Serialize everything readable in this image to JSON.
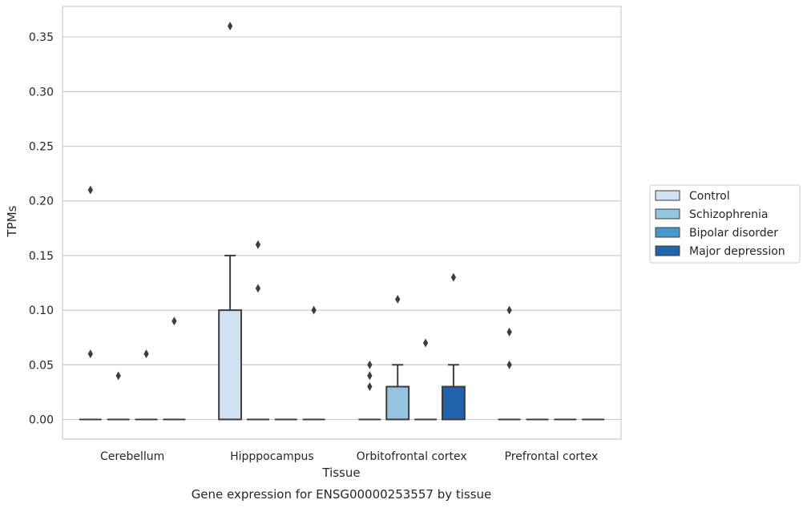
{
  "chart_data": {
    "type": "box",
    "title": "Gene expression for ENSG00000253557 by tissue",
    "xlabel": "Tissue",
    "ylabel": "TPMs",
    "categories": [
      "Cerebellum",
      "Hipppocampus",
      "Orbitofrontal cortex",
      "Prefrontal cortex"
    ],
    "ylim": [
      -0.018,
      0.378
    ],
    "yticks": [
      0.0,
      0.05,
      0.1,
      0.15,
      0.2,
      0.25,
      0.3,
      0.35
    ],
    "ytick_labels": [
      "0.00",
      "0.05",
      "0.10",
      "0.15",
      "0.20",
      "0.25",
      "0.30",
      "0.35"
    ],
    "grid": "horizontal",
    "legend_position": "right",
    "series": [
      {
        "name": "Control",
        "color": "#d0e1f2",
        "boxes": [
          {
            "q1": 0,
            "median": 0,
            "q3": 0,
            "whisker_low": 0,
            "whisker_high": 0,
            "outliers": [
              0.21,
              0.06
            ]
          },
          {
            "q1": 0,
            "median": 0,
            "q3": 0.1,
            "whisker_low": 0,
            "whisker_high": 0.15,
            "outliers": [
              0.36
            ]
          },
          {
            "q1": 0,
            "median": 0,
            "q3": 0,
            "whisker_low": 0,
            "whisker_high": 0,
            "outliers": [
              0.05,
              0.04,
              0.03
            ]
          },
          {
            "q1": 0,
            "median": 0,
            "q3": 0,
            "whisker_low": 0,
            "whisker_high": 0,
            "outliers": [
              0.1,
              0.08,
              0.05
            ]
          }
        ]
      },
      {
        "name": "Schizophrenia",
        "color": "#94c4df",
        "boxes": [
          {
            "q1": 0,
            "median": 0,
            "q3": 0,
            "whisker_low": 0,
            "whisker_high": 0,
            "outliers": [
              0.04
            ]
          },
          {
            "q1": 0,
            "median": 0,
            "q3": 0,
            "whisker_low": 0,
            "whisker_high": 0,
            "outliers": [
              0.16,
              0.12
            ]
          },
          {
            "q1": 0,
            "median": 0,
            "q3": 0.03,
            "whisker_low": 0,
            "whisker_high": 0.05,
            "outliers": [
              0.11
            ]
          },
          {
            "q1": 0,
            "median": 0,
            "q3": 0,
            "whisker_low": 0,
            "whisker_high": 0,
            "outliers": []
          }
        ]
      },
      {
        "name": "Bipolar disorder",
        "color": "#4a98c9",
        "boxes": [
          {
            "q1": 0,
            "median": 0,
            "q3": 0,
            "whisker_low": 0,
            "whisker_high": 0,
            "outliers": [
              0.06
            ]
          },
          {
            "q1": 0,
            "median": 0,
            "q3": 0,
            "whisker_low": 0,
            "whisker_high": 0,
            "outliers": []
          },
          {
            "q1": 0,
            "median": 0,
            "q3": 0,
            "whisker_low": 0,
            "whisker_high": 0,
            "outliers": [
              0.07
            ]
          },
          {
            "q1": 0,
            "median": 0,
            "q3": 0,
            "whisker_low": 0,
            "whisker_high": 0,
            "outliers": []
          }
        ]
      },
      {
        "name": "Major depression",
        "color": "#2164ab",
        "boxes": [
          {
            "q1": 0,
            "median": 0,
            "q3": 0,
            "whisker_low": 0,
            "whisker_high": 0,
            "outliers": [
              0.09
            ]
          },
          {
            "q1": 0,
            "median": 0,
            "q3": 0,
            "whisker_low": 0,
            "whisker_high": 0,
            "outliers": [
              0.1
            ]
          },
          {
            "q1": 0,
            "median": 0,
            "q3": 0.03,
            "whisker_low": 0,
            "whisker_high": 0.05,
            "outliers": [
              0.13
            ]
          },
          {
            "q1": 0,
            "median": 0,
            "q3": 0,
            "whisker_low": 0,
            "whisker_high": 0,
            "outliers": []
          }
        ]
      }
    ]
  }
}
